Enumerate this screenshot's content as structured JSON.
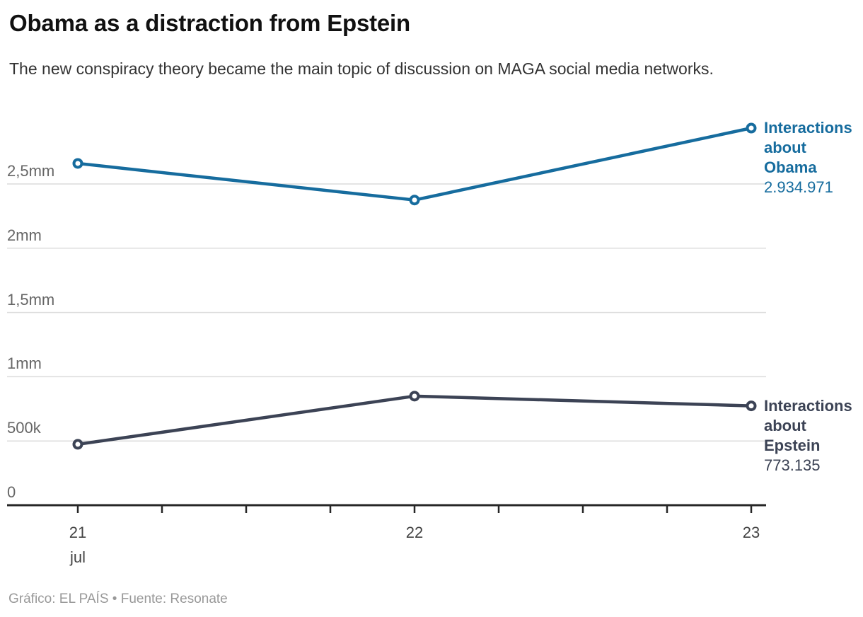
{
  "chart_data": {
    "type": "line",
    "title": "Obama as a distraction from Epstein",
    "subtitle": "The new conspiracy theory became the main topic of discussion on MAGA social media networks.",
    "x": [
      21,
      22,
      23
    ],
    "x_tick_labels": [
      "21",
      "22",
      "23"
    ],
    "x_sub_label": "jul",
    "x_minor_ticks_per_day": 4,
    "xlabel": "",
    "ylabel": "",
    "ylim": [
      0,
      2750000
    ],
    "grid": true,
    "legend_position": "right-of-line-end",
    "y_ticks": [
      {
        "value": 0,
        "label": "0"
      },
      {
        "value": 500000,
        "label": "500k"
      },
      {
        "value": 1000000,
        "label": "1mm"
      },
      {
        "value": 1500000,
        "label": "1,5mm"
      },
      {
        "value": 2000000,
        "label": "2mm"
      },
      {
        "value": 2500000,
        "label": "2,5mm"
      }
    ],
    "series": [
      {
        "name": "Interactions about Obama",
        "label_lines": [
          "Interactions",
          "about",
          "Obama"
        ],
        "value_label": "2.934.971",
        "final_value": 2934971,
        "values": [
          2660000,
          2375000,
          2934971
        ],
        "color": "#166c9e"
      },
      {
        "name": "Interactions about Epstein",
        "label_lines": [
          "Interactions",
          "about",
          "Epstein"
        ],
        "value_label": "773.135",
        "final_value": 773135,
        "values": [
          474000,
          849000,
          773135
        ],
        "color": "#3c4355"
      }
    ]
  },
  "footer": {
    "credit": "Gráfico: EL PAÍS • Fuente: Resonate"
  },
  "colors": {
    "obama_blue": "#166c9e",
    "epstein_navy": "#3c4355",
    "gridline": "#dcdcdc",
    "axis": "#262626",
    "y_label": "#666666",
    "x_label": "#444444",
    "title": "#111111",
    "subtitle": "#333333",
    "credit": "#999999",
    "marker_fill": "#ffffff",
    "background": "#ffffff"
  }
}
